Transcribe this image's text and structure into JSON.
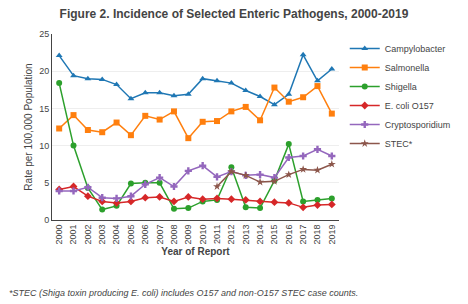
{
  "chart_data": {
    "type": "line",
    "title": "Figure 2. Incidence of Selected Enteric Pathogens, 2000-2019",
    "x_label": "Year of Report",
    "y_label": "Rate per 100,000 Population",
    "annotations": [
      "*STEC (Shiga toxin producing E. coli) includes O157 and non-O157 STEC case counts."
    ],
    "x": [
      2000,
      2001,
      2002,
      2003,
      2004,
      2005,
      2006,
      2007,
      2008,
      2009,
      2010,
      2011,
      2012,
      2013,
      2014,
      2015,
      2016,
      2017,
      2018,
      2019
    ],
    "series": [
      {
        "name": "Campylobacter",
        "marker": "triangle-up",
        "values": [
          22.1,
          19.4,
          19.0,
          18.9,
          18.2,
          16.3,
          17.1,
          17.1,
          16.7,
          16.9,
          19.0,
          18.7,
          18.4,
          17.4,
          16.6,
          15.5,
          16.9,
          22.2,
          18.7,
          20.3
        ]
      },
      {
        "name": "Salmonella",
        "marker": "square",
        "values": [
          12.3,
          14.1,
          12.1,
          11.8,
          13.1,
          11.4,
          14.0,
          13.5,
          14.6,
          11.0,
          13.2,
          13.3,
          14.6,
          15.2,
          13.4,
          17.8,
          15.9,
          16.5,
          18.0,
          14.3
        ]
      },
      {
        "name": "Shigella",
        "marker": "circle",
        "values": [
          18.4,
          10.0,
          4.3,
          1.4,
          1.9,
          4.9,
          5.0,
          5.0,
          1.5,
          1.6,
          2.5,
          2.7,
          7.1,
          1.7,
          1.6,
          5.3,
          10.2,
          2.5,
          2.7,
          2.9
        ]
      },
      {
        "name": "E. coli O157",
        "marker": "diamond",
        "values": [
          4.1,
          4.5,
          3.2,
          2.5,
          2.3,
          2.5,
          3.0,
          3.1,
          2.5,
          3.1,
          2.8,
          2.9,
          2.8,
          2.7,
          2.5,
          2.4,
          2.3,
          1.7,
          2.0,
          2.1
        ]
      },
      {
        "name": "Cryptosporidium",
        "marker": "cross",
        "values": [
          3.9,
          3.9,
          4.4,
          3.0,
          2.9,
          3.2,
          4.8,
          5.7,
          4.5,
          6.6,
          7.3,
          5.8,
          6.5,
          6.0,
          6.1,
          5.7,
          8.4,
          8.6,
          9.5,
          8.6
        ]
      },
      {
        "name": "STEC*",
        "marker": "star",
        "values": [
          null,
          null,
          null,
          null,
          null,
          null,
          null,
          null,
          null,
          null,
          null,
          4.5,
          6.5,
          6.0,
          5.1,
          5.2,
          6.1,
          6.8,
          6.7,
          7.5
        ]
      }
    ],
    "xlim": [
      1999.5,
      2019.5
    ],
    "xticks": [
      2000,
      2001,
      2002,
      2003,
      2004,
      2005,
      2006,
      2007,
      2008,
      2009,
      2010,
      2011,
      2012,
      2013,
      2014,
      2015,
      2016,
      2017,
      2018,
      2019
    ],
    "ylim": [
      0,
      25
    ],
    "yticks": [
      0,
      5,
      10,
      15,
      20,
      25
    ],
    "grid": true,
    "legend": "upper right"
  }
}
